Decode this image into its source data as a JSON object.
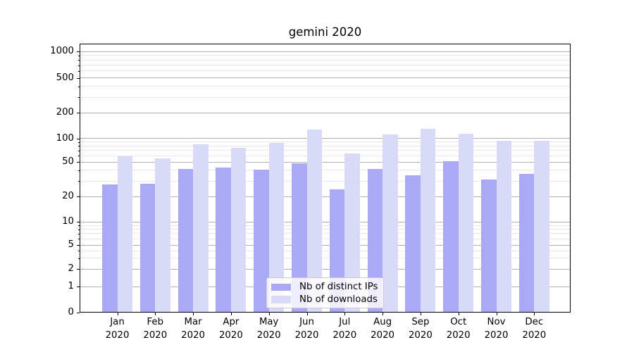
{
  "chart_data": {
    "type": "bar",
    "title": "gemini 2020",
    "categories": [
      "Jan",
      "Feb",
      "Mar",
      "Apr",
      "May",
      "Jun",
      "Jul",
      "Aug",
      "Sep",
      "Oct",
      "Nov",
      "Dec"
    ],
    "category_year": "2020",
    "series": [
      {
        "name": "Nb of distinct IPs",
        "color": "#a9a9f5",
        "values": [
          27,
          28,
          41,
          43,
          40,
          48,
          24,
          41,
          35,
          51,
          31,
          36
        ]
      },
      {
        "name": "Nb of downloads",
        "color": "#d9d9f8",
        "values": [
          58,
          55,
          84,
          75,
          87,
          127,
          64,
          110,
          129,
          112,
          93,
          92
        ]
      }
    ],
    "yscale": "symlog",
    "ylim": [
      0,
      1250
    ],
    "yticks": [
      1000,
      500,
      200,
      100,
      50,
      20,
      10,
      5,
      2,
      1,
      0
    ],
    "minor_gridlines": [
      3,
      4,
      6,
      7,
      8,
      9,
      30,
      40,
      60,
      70,
      80,
      90,
      300,
      400,
      600,
      700,
      800,
      900
    ],
    "grid": "on",
    "legend_position": "lower center",
    "colors": {
      "major_grid": "#b0b0b0",
      "minor_grid": "#e7e7e7",
      "spine": "#000000"
    }
  }
}
